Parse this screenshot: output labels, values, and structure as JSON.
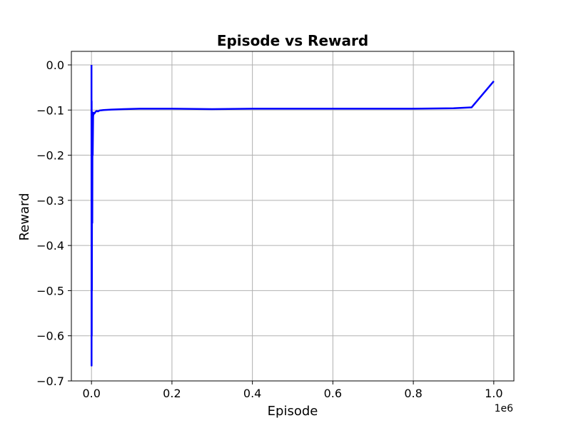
{
  "chart_data": {
    "type": "line",
    "title": "Episode vs Reward",
    "xlabel": "Episode",
    "ylabel": "Reward",
    "x_offset_label": "1e6",
    "xlim": [
      -0.05,
      1.05
    ],
    "ylim": [
      -0.7,
      0.03
    ],
    "x_ticks": [
      0.0,
      0.2,
      0.4,
      0.6,
      0.8,
      1.0
    ],
    "x_tick_labels": [
      "0.0",
      "0.2",
      "0.4",
      "0.6",
      "0.8",
      "1.0"
    ],
    "y_ticks": [
      0.0,
      -0.1,
      -0.2,
      -0.3,
      -0.4,
      -0.5,
      -0.6,
      -0.7
    ],
    "y_tick_labels": [
      "0.0",
      "−0.1",
      "−0.2",
      "−0.3",
      "−0.4",
      "−0.5",
      "−0.6",
      "−0.7"
    ],
    "grid": true,
    "series": [
      {
        "color": "#0000ff",
        "x": [
          0.0,
          0.0002,
          0.0004,
          0.0006,
          0.0008,
          0.001,
          0.0015,
          0.002,
          0.0025,
          0.003,
          0.004,
          0.005,
          0.007,
          0.01,
          0.013,
          0.016,
          0.02,
          0.03,
          0.05,
          0.08,
          0.12,
          0.2,
          0.3,
          0.4,
          0.5,
          0.6,
          0.7,
          0.8,
          0.9,
          0.945,
          1.0
        ],
        "y": [
          0.0,
          -0.666,
          -0.08,
          -0.6,
          -0.12,
          -0.5,
          -0.11,
          -0.35,
          -0.105,
          -0.2,
          -0.115,
          -0.106,
          -0.108,
          -0.104,
          -0.102,
          -0.103,
          -0.101,
          -0.1,
          -0.099,
          -0.098,
          -0.097,
          -0.097,
          -0.098,
          -0.097,
          -0.097,
          -0.097,
          -0.097,
          -0.097,
          -0.096,
          -0.094,
          -0.036
        ]
      }
    ]
  }
}
